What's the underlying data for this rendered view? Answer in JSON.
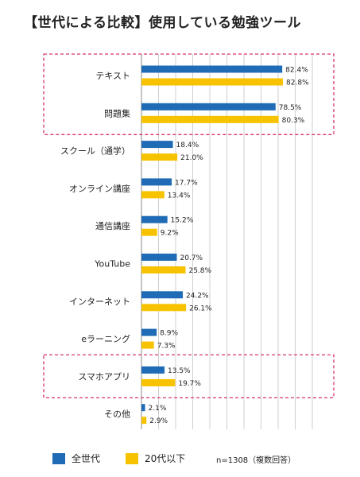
{
  "chart_data": {
    "type": "bar",
    "orientation": "horizontal",
    "title": "【世代による比較】使用している勉強ツール",
    "categories": [
      "テキスト",
      "問題集",
      "スクール（通学）",
      "オンライン講座",
      "通信講座",
      "YouTube",
      "インターネット",
      "eラーニング",
      "スマホアプリ",
      "その他"
    ],
    "series": [
      {
        "name": "全世代",
        "color": "#1f6bb5",
        "values": [
          82.4,
          78.5,
          18.4,
          17.7,
          15.2,
          20.7,
          24.2,
          8.9,
          13.5,
          2.1
        ]
      },
      {
        "name": "20代以下",
        "color": "#f7c300",
        "values": [
          82.8,
          80.3,
          21.0,
          13.4,
          9.2,
          25.8,
          26.1,
          7.3,
          19.7,
          2.9
        ]
      }
    ],
    "value_labels": [
      [
        "82.4%",
        "78.5%",
        "18.4%",
        "17.7%",
        "15.2%",
        "20.7%",
        "24.2%",
        "8.9%",
        "13.5%",
        "2.1%"
      ],
      [
        "82.8%",
        "80.3%",
        "21.0%",
        "13.4%",
        "9.2%",
        "25.8%",
        "26.1%",
        "7.3%",
        "19.7%",
        "2.9%"
      ]
    ],
    "xlim": [
      0,
      100
    ],
    "grid": true,
    "highlight_color": "#d6336c",
    "legend_position": "bottom",
    "note": "n=1308（複数回答）"
  }
}
